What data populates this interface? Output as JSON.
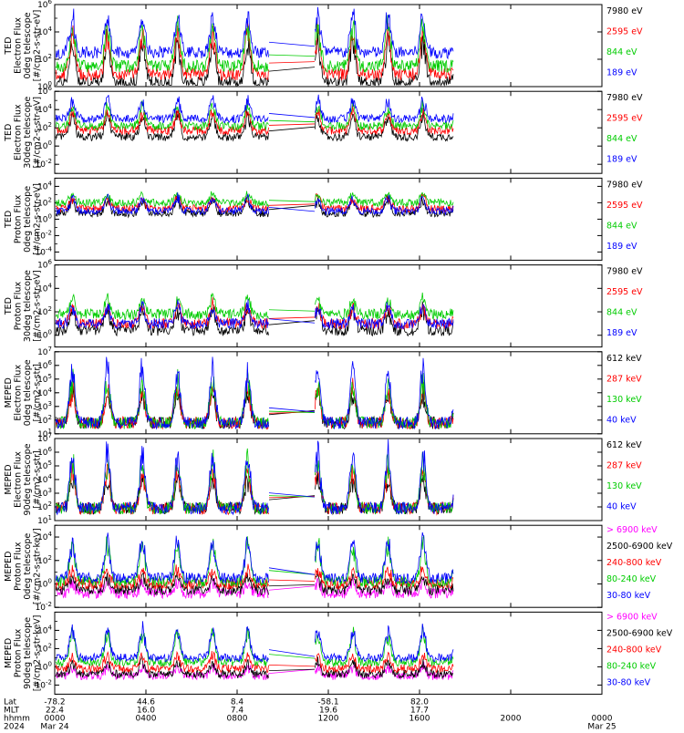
{
  "colors": {
    "black": "#000000",
    "red": "#ff0000",
    "green": "#00cc00",
    "blue": "#0000ff",
    "magenta": "#ff00ff"
  },
  "chart_data": {
    "type": "line",
    "x_axis": {
      "rows": [
        "Lat",
        "MLT",
        "hhmm",
        "2024"
      ],
      "ticks": [
        {
          "time": "0000",
          "lat": "-78.2",
          "mlt": "22.4",
          "date": "Mar 24"
        },
        {
          "time": "0400",
          "lat": "44.6",
          "mlt": "16.0",
          "date": ""
        },
        {
          "time": "0800",
          "lat": "8.4",
          "mlt": "7.4",
          "date": ""
        },
        {
          "time": "1200",
          "lat": "-58.1",
          "mlt": "19.6",
          "date": ""
        },
        {
          "time": "1600",
          "lat": "82.0",
          "mlt": "17.7",
          "date": ""
        },
        {
          "time": "2000",
          "lat": "",
          "mlt": "",
          "date": ""
        },
        {
          "time": "0000",
          "lat": "",
          "mlt": "",
          "date": "Mar 25"
        }
      ],
      "hour_range": [
        0,
        24
      ],
      "data_gap_hours": [
        9.4,
        11.4
      ],
      "data_end_hour": 17.5
    },
    "panels": [
      {
        "ylabel": [
          "TED",
          "Electron Flux",
          "0deg telescope",
          "[#/cm2-s-str-eV]"
        ],
        "ytick_exponents": [
          0,
          2,
          4,
          6
        ],
        "ymin_exp": 0,
        "ymax_exp": 6,
        "series": [
          {
            "name": "7980 eV",
            "color": "#000000",
            "base": 0.3,
            "peak": 3.6
          },
          {
            "name": "2595 eV",
            "color": "#ff0000",
            "base": 0.9,
            "peak": 4.2
          },
          {
            "name": "844 eV",
            "color": "#00cc00",
            "base": 1.5,
            "peak": 4.8
          },
          {
            "name": "189 eV",
            "color": "#0000ff",
            "base": 2.5,
            "peak": 5.5
          }
        ]
      },
      {
        "ylabel": [
          "TED",
          "Electron Flux",
          "30deg telescope",
          "[#/cm2-s-str-eV]"
        ],
        "ytick_exponents": [
          -2,
          0,
          2,
          4,
          6
        ],
        "ymin_exp": -3,
        "ymax_exp": 6,
        "series": [
          {
            "name": "7980 eV",
            "color": "#000000",
            "base": 1.0,
            "peak": 3.6
          },
          {
            "name": "2595 eV",
            "color": "#ff0000",
            "base": 1.7,
            "peak": 4.0
          },
          {
            "name": "844 eV",
            "color": "#00cc00",
            "base": 2.2,
            "peak": 4.6
          },
          {
            "name": "189 eV",
            "color": "#0000ff",
            "base": 3.0,
            "peak": 5.3
          }
        ]
      },
      {
        "ylabel": [
          "TED",
          "Proton Flux",
          "0deg telescope",
          "[#/cm2-s-str-eV]"
        ],
        "ytick_exponents": [
          -4,
          -2,
          0,
          2,
          4
        ],
        "ymin_exp": -5,
        "ymax_exp": 5,
        "series": [
          {
            "name": "7980 eV",
            "color": "#000000",
            "base": 0.7,
            "peak": 2.6
          },
          {
            "name": "2595 eV",
            "color": "#ff0000",
            "base": 1.3,
            "peak": 2.8
          },
          {
            "name": "844 eV",
            "color": "#00cc00",
            "base": 2.0,
            "peak": 3.2
          },
          {
            "name": "189 eV",
            "color": "#0000ff",
            "base": 1.0,
            "peak": 2.8
          }
        ]
      },
      {
        "ylabel": [
          "TED",
          "Proton Flux",
          "30deg telescope",
          "[#/cm2-s-str-eV]"
        ],
        "ytick_exponents": [
          0,
          2,
          4,
          6
        ],
        "ymin_exp": -1,
        "ymax_exp": 6,
        "series": [
          {
            "name": "7980 eV",
            "color": "#000000",
            "base": 0.4,
            "peak": 2.4
          },
          {
            "name": "2595 eV",
            "color": "#ff0000",
            "base": 1.0,
            "peak": 2.7
          },
          {
            "name": "844 eV",
            "color": "#00cc00",
            "base": 1.8,
            "peak": 3.3
          },
          {
            "name": "189 eV",
            "color": "#0000ff",
            "base": 1.0,
            "peak": 2.6
          }
        ]
      },
      {
        "ylabel": [
          "MEPED",
          "Electron Flux",
          "0deg telescope",
          "[#/cm2-s-str]"
        ],
        "ytick_exponents": [
          1,
          2,
          3,
          4,
          5,
          6,
          7
        ],
        "ymin_exp": 1,
        "ymax_exp": 7,
        "series": [
          {
            "name": "612 keV",
            "color": "#000000",
            "base": 1.8,
            "peak": 4.2
          },
          {
            "name": "287 keV",
            "color": "#ff0000",
            "base": 1.8,
            "peak": 4.6
          },
          {
            "name": "130 keV",
            "color": "#00cc00",
            "base": 1.8,
            "peak": 5.2
          },
          {
            "name": "40 keV",
            "color": "#0000ff",
            "base": 1.8,
            "peak": 6.2
          }
        ]
      },
      {
        "ylabel": [
          "MEPED",
          "Electron Flux",
          "90deg telescope",
          "[#/cm2-s-str]"
        ],
        "ytick_exponents": [
          1,
          2,
          3,
          4,
          5,
          6,
          7
        ],
        "ymin_exp": 1,
        "ymax_exp": 7,
        "series": [
          {
            "name": "612 keV",
            "color": "#000000",
            "base": 1.9,
            "peak": 4.4
          },
          {
            "name": "287 keV",
            "color": "#ff0000",
            "base": 1.9,
            "peak": 5.0
          },
          {
            "name": "130 keV",
            "color": "#00cc00",
            "base": 1.9,
            "peak": 5.6
          },
          {
            "name": "40 keV",
            "color": "#0000ff",
            "base": 1.9,
            "peak": 6.4
          }
        ]
      },
      {
        "ylabel": [
          "MEPED",
          "Proton Flux",
          "0deg telescope",
          "[#/cm2-s-str-keV]"
        ],
        "ytick_exponents": [
          -2,
          0,
          2,
          4
        ],
        "ymin_exp": -2,
        "ymax_exp": 5,
        "series": [
          {
            "name": "> 6900 keV",
            "color": "#ff00ff",
            "base": -0.8,
            "peak": 0.3
          },
          {
            "name": "2500-6900 keV",
            "color": "#000000",
            "base": -0.5,
            "peak": 0.8
          },
          {
            "name": "240-800 keV",
            "color": "#ff0000",
            "base": 0.0,
            "peak": 1.4
          },
          {
            "name": "80-240 keV",
            "color": "#00cc00",
            "base": 0.2,
            "peak": 4.0
          },
          {
            "name": "30-80 keV",
            "color": "#0000ff",
            "base": 0.5,
            "peak": 4.0
          }
        ]
      },
      {
        "ylabel": [
          "MEPED",
          "Proton Flux",
          "90deg telescope",
          "[#/cm2-s-str-keV]"
        ],
        "ytick_exponents": [
          -2,
          0,
          2,
          4
        ],
        "ymin_exp": -3,
        "ymax_exp": 6,
        "series": [
          {
            "name": "> 6900 keV",
            "color": "#ff00ff",
            "base": -1.0,
            "peak": 0.1
          },
          {
            "name": "2500-6900 keV",
            "color": "#000000",
            "base": -0.8,
            "peak": 0.7
          },
          {
            "name": "240-800 keV",
            "color": "#ff0000",
            "base": -0.2,
            "peak": 1.4
          },
          {
            "name": "80-240 keV",
            "color": "#00cc00",
            "base": 0.5,
            "peak": 4.0
          },
          {
            "name": "30-80 keV",
            "color": "#0000ff",
            "base": 1.0,
            "peak": 4.5
          }
        ]
      }
    ]
  }
}
